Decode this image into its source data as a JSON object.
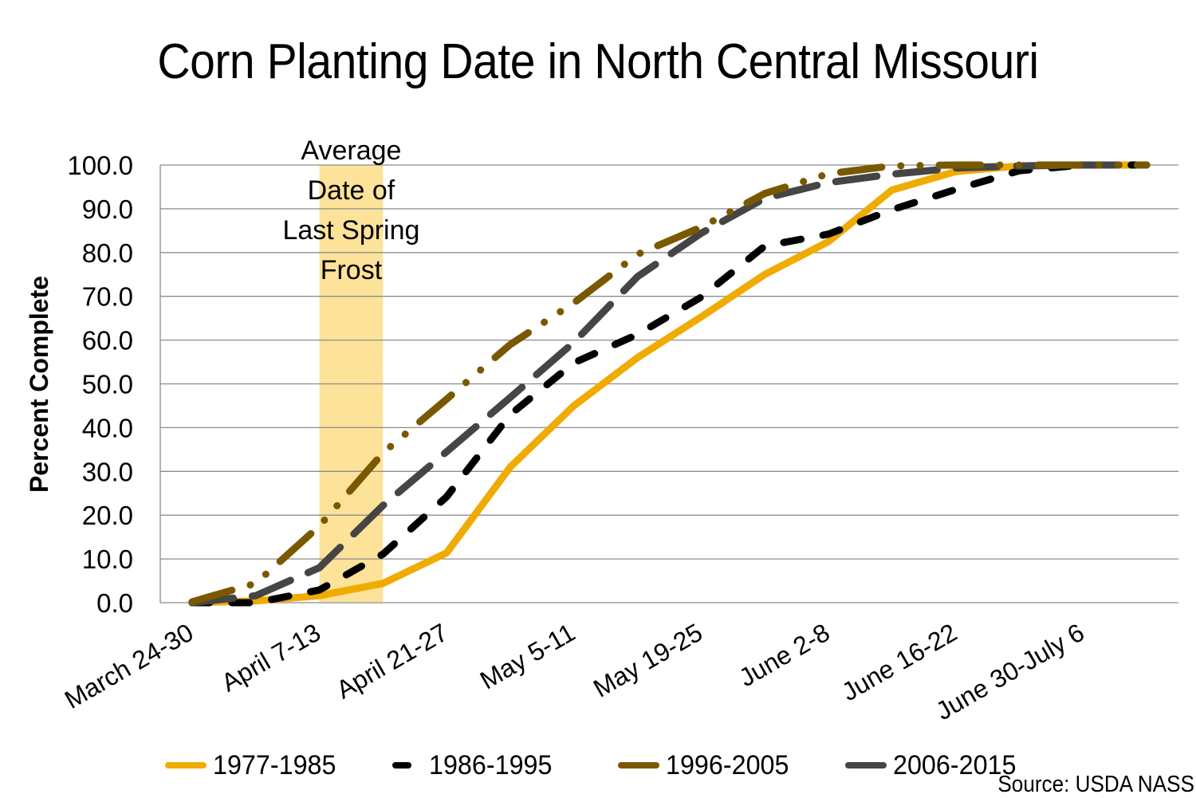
{
  "chart_data": {
    "type": "line",
    "title": "Corn Planting Date in North Central Missouri",
    "xlabel": "",
    "ylabel": "Percent Complete",
    "ylim": [
      0,
      100
    ],
    "ytick_step": 10,
    "ytick_labels": [
      "0.0",
      "10.0",
      "20.0",
      "30.0",
      "40.0",
      "50.0",
      "60.0",
      "70.0",
      "80.0",
      "90.0",
      "100.0"
    ],
    "grid": true,
    "x_units": "week index (weekly periods starting March 24-30)",
    "x": [
      0,
      1,
      2,
      3,
      4,
      5,
      6,
      7,
      8,
      9,
      10,
      11,
      12,
      13,
      14,
      15
    ],
    "x_tick_labels": [
      {
        "x": 0,
        "label": "March 24-30"
      },
      {
        "x": 2,
        "label": "April 7-13"
      },
      {
        "x": 4,
        "label": "April 21-27"
      },
      {
        "x": 6,
        "label": "May 5-11"
      },
      {
        "x": 8,
        "label": "May 19-25"
      },
      {
        "x": 10,
        "label": "June 2-8"
      },
      {
        "x": 12,
        "label": "June 16-22"
      },
      {
        "x": 14,
        "label": "June 30-July 6"
      }
    ],
    "series": [
      {
        "name": "1977-1985",
        "color": "#f0ab00",
        "style": "solid",
        "values": [
          0,
          0.4,
          1.6,
          4.4,
          11.4,
          31.0,
          45.0,
          56.0,
          65.3,
          75.0,
          82.5,
          94.3,
          98.5,
          99.8,
          100,
          100
        ]
      },
      {
        "name": "1986-1995",
        "color": "#000000",
        "style": "dash",
        "values": [
          0,
          0,
          2.9,
          11.1,
          24.2,
          43.0,
          54.8,
          61.3,
          69.8,
          81.5,
          84.2,
          89.8,
          94.4,
          98.7,
          100,
          100
        ]
      },
      {
        "name": "1996-2005",
        "color": "#7a5800",
        "style": "dash-dot-dot",
        "values": [
          0.2,
          4.4,
          17.5,
          34.2,
          46.5,
          59.0,
          68.5,
          79.6,
          85.8,
          93.5,
          98.0,
          99.8,
          100,
          100,
          100,
          100
        ]
      },
      {
        "name": "2006-2015",
        "color": "#454545",
        "style": "long-dash",
        "values": [
          0,
          1.6,
          8.0,
          22.2,
          34.5,
          46.9,
          59.5,
          74.5,
          84.4,
          92.4,
          96.0,
          97.9,
          99.3,
          99.8,
          100,
          100
        ]
      }
    ],
    "annotations": [
      {
        "type": "band",
        "x_range": [
          2.5,
          3.5
        ],
        "color": "#fde29a",
        "text_lines": [
          "Average",
          "Date of",
          "Last Spring",
          "Frost"
        ]
      }
    ],
    "legend_position": "bottom",
    "source": "Source: USDA NASS"
  }
}
